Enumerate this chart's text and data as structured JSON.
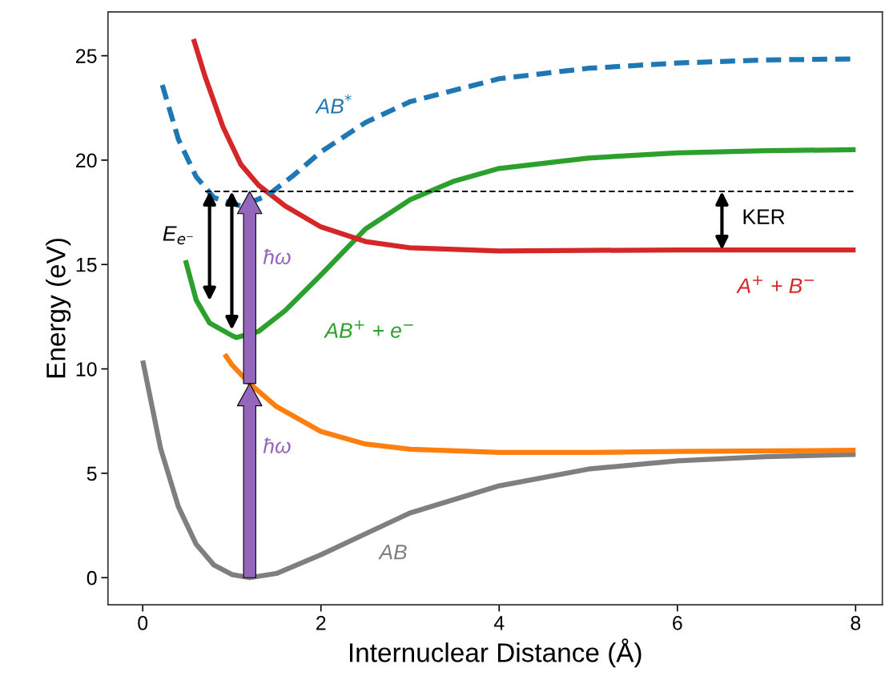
{
  "chart_data": {
    "type": "line",
    "xlabel": "Internuclear Distance (Å)",
    "ylabel": "Energy (eV)",
    "xlim": [
      -0.39,
      8.3
    ],
    "ylim": [
      -1.3,
      27.1
    ],
    "xticks": [
      0,
      2,
      4,
      6,
      8
    ],
    "yticks": [
      0,
      5,
      10,
      15,
      20,
      25
    ],
    "grid": false,
    "legend": false,
    "series": [
      {
        "name": "AB",
        "color": "#7f7f7f",
        "x": [
          0,
          0.2,
          0.4,
          0.6,
          0.8,
          1.0,
          1.2,
          1.5,
          2,
          2.5,
          3,
          4,
          5,
          6,
          7,
          8
        ],
        "values": [
          10.4,
          6.2,
          3.4,
          1.6,
          0.6,
          0.15,
          0,
          0.2,
          1.1,
          2.1,
          3.1,
          4.4,
          5.2,
          5.6,
          5.8,
          5.9
        ]
      },
      {
        "color": "#ff7f0e",
        "x": [
          0.92,
          1.0,
          1.2,
          1.5,
          2,
          2.5,
          3,
          4,
          5,
          6,
          8
        ],
        "values": [
          10.7,
          10.2,
          9.3,
          8.2,
          7.0,
          6.4,
          6.15,
          6.0,
          6.0,
          6.05,
          6.1
        ]
      },
      {
        "name": "AB$^{+}$ + e$^{−}$",
        "color": "#2ca02c",
        "x": [
          0.48,
          0.6,
          0.75,
          1.0,
          1.05,
          1.3,
          1.6,
          2.0,
          2.5,
          3.0,
          3.5,
          4,
          5,
          6,
          7,
          8
        ],
        "values": [
          15.2,
          13.3,
          12.2,
          11.6,
          11.5,
          11.8,
          12.8,
          14.5,
          16.7,
          18.1,
          19.0,
          19.6,
          20.1,
          20.35,
          20.45,
          20.5
        ]
      },
      {
        "name": "A$^{+}$ + B$^{−}$",
        "color": "#d62728",
        "x": [
          0.57,
          0.7,
          0.9,
          1.1,
          1.3,
          1.6,
          2.0,
          2.5,
          3,
          4,
          6,
          6.5,
          8
        ],
        "values": [
          25.8,
          24.0,
          21.6,
          19.8,
          18.8,
          17.8,
          16.8,
          16.1,
          15.8,
          15.65,
          15.7,
          15.7,
          15.7
        ]
      },
      {
        "name": "AB$^{*}$",
        "color": "#1f77b4",
        "line_style": "dashed",
        "x": [
          0.22,
          0.4,
          0.6,
          0.8,
          1.1,
          1.4,
          1.7,
          2,
          2.5,
          3,
          4,
          5,
          6,
          7,
          8
        ],
        "values": [
          23.6,
          21.0,
          19.2,
          18.2,
          17.8,
          18.3,
          19.3,
          20.4,
          21.8,
          22.8,
          23.9,
          24.4,
          24.65,
          24.8,
          24.85
        ]
      },
      {
        "color": "#000000",
        "line_style": "dotted",
        "x": [
          0.7,
          8
        ],
        "values": [
          18.5,
          18.5
        ]
      }
    ],
    "annotations": [
      "ħω",
      "ħω",
      "E$_{e⁻}$",
      "KER"
    ]
  }
}
